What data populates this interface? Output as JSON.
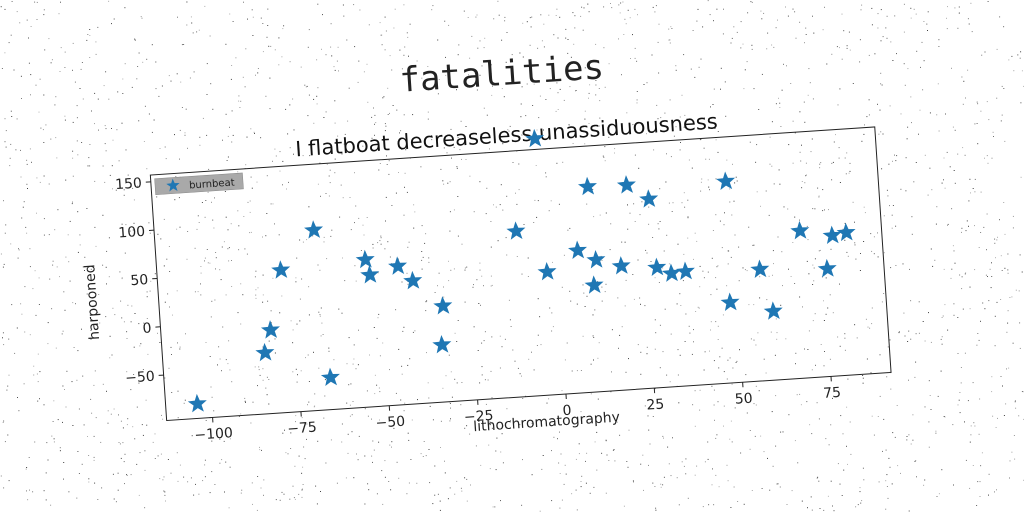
{
  "figure": {
    "suptitle": "fatalities"
  },
  "colors": {
    "marker": "#1f77b4",
    "legend_bg": "#a9a9a9",
    "axes_edge": "#222222"
  },
  "chart_data": {
    "type": "scatter",
    "title": "I flatboat decreaseless unassiduousness",
    "xlabel": "lithochromatography",
    "ylabel": "harpooned",
    "xlim": [
      -113,
      92
    ],
    "ylim": [
      -97,
      157
    ],
    "xticks": [
      -100,
      -75,
      -50,
      -25,
      0,
      25,
      50,
      75
    ],
    "xtick_labels": [
      "−100",
      "−75",
      "−50",
      "−25",
      "0",
      "25",
      "50",
      "75"
    ],
    "yticks": [
      -50,
      0,
      50,
      100,
      150
    ],
    "ytick_labels": [
      "−50",
      "0",
      "50",
      "100",
      "150"
    ],
    "grid": false,
    "legend_position": "top-left",
    "marker": "star-icon",
    "series": [
      {
        "name": "burnbeat",
        "points": [
          [
            -104,
            -82
          ],
          [
            -84,
            -34
          ],
          [
            -82,
            -11
          ],
          [
            -78,
            50
          ],
          [
            -66,
            -64
          ],
          [
            -68,
            89
          ],
          [
            -54,
            55
          ],
          [
            -53,
            39
          ],
          [
            -45,
            46
          ],
          [
            -41,
            30
          ],
          [
            -33,
            2
          ],
          [
            -34,
            -38
          ],
          [
            -11,
            74
          ],
          [
            -4,
            168
          ],
          [
            -3,
            30
          ],
          [
            6,
            50
          ],
          [
            10,
            115
          ],
          [
            11,
            39
          ],
          [
            10,
            13
          ],
          [
            18,
            31
          ],
          [
            21,
            114
          ],
          [
            27,
            98
          ],
          [
            28,
            27
          ],
          [
            32,
            20
          ],
          [
            36,
            21
          ],
          [
            48,
            -14
          ],
          [
            49,
            111
          ],
          [
            57,
            18
          ],
          [
            60,
            -26
          ],
          [
            69,
            55
          ],
          [
            76,
            14
          ],
          [
            78,
            48
          ],
          [
            82,
            50
          ]
        ]
      }
    ]
  }
}
